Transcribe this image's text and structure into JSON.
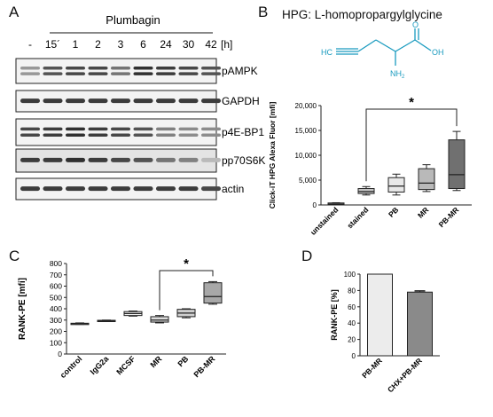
{
  "panels": {
    "a": {
      "letter": "A",
      "treatment": "Plumbagin",
      "time_unit": "[h]",
      "lanes": [
        "-",
        "15´",
        "1",
        "2",
        "3",
        "6",
        "24",
        "30",
        "42"
      ],
      "blots": [
        "pAMPK",
        "GAPDH",
        "p4E-BP1",
        "pp70S6K",
        "actin"
      ]
    },
    "b": {
      "letter": "B",
      "structure_title": "HPG: L-homopropargylglycine",
      "structure_atoms": {
        "alkyne": "HC",
        "oh": "OH",
        "o": "O",
        "nh2": "NH",
        "nh2_sub": "2"
      },
      "chart_data": {
        "type": "box",
        "ylabel": "Click-iT HPG Alexa Fluor [mfi]",
        "ylim": [
          0,
          20000
        ],
        "yticks": [
          "0",
          "5,000",
          "10,000",
          "15,000",
          "20,000"
        ],
        "categories": [
          "unstained",
          "stained",
          "PB",
          "MR",
          "PB-MR"
        ],
        "boxes": [
          {
            "min": 200,
            "q1": 250,
            "median": 320,
            "q3": 400,
            "max": 450,
            "fill": "#ffffff"
          },
          {
            "min": 2000,
            "q1": 2300,
            "median": 2700,
            "q3": 3300,
            "max": 3700,
            "fill": "#c8c8c8"
          },
          {
            "min": 2000,
            "q1": 2600,
            "median": 3800,
            "q3": 5500,
            "max": 6200,
            "fill": "#e8e8e8"
          },
          {
            "min": 2700,
            "q1": 3100,
            "median": 4400,
            "q3": 7300,
            "max": 8100,
            "fill": "#b9b9b9"
          },
          {
            "min": 2900,
            "q1": 3300,
            "median": 6100,
            "q3": 13100,
            "max": 14800,
            "fill": "#707070"
          }
        ],
        "significance": {
          "from": "stained",
          "to": "PB-MR",
          "label": "*"
        }
      }
    },
    "c": {
      "letter": "C",
      "chart_data": {
        "type": "box",
        "ylabel": "RANK-PE [mfi]",
        "ylim": [
          0,
          800
        ],
        "yticks": [
          "0",
          "100",
          "200",
          "300",
          "400",
          "500",
          "600",
          "700",
          "800"
        ],
        "categories": [
          "control",
          "IgG2a",
          "MCSF",
          "MR",
          "PB",
          "PB-MR"
        ],
        "boxes": [
          {
            "min": 262,
            "q1": 265,
            "median": 268,
            "q3": 272,
            "max": 275,
            "fill": "#ffffff"
          },
          {
            "min": 288,
            "q1": 290,
            "median": 294,
            "q3": 298,
            "max": 300,
            "fill": "#ffffff"
          },
          {
            "min": 335,
            "q1": 340,
            "median": 358,
            "q3": 375,
            "max": 380,
            "fill": "#f0f0f0"
          },
          {
            "min": 275,
            "q1": 282,
            "median": 300,
            "q3": 330,
            "max": 340,
            "fill": "#dcdcdc"
          },
          {
            "min": 320,
            "q1": 330,
            "median": 362,
            "q3": 395,
            "max": 400,
            "fill": "#d0d0d0"
          },
          {
            "min": 440,
            "q1": 450,
            "median": 508,
            "q3": 630,
            "max": 640,
            "fill": "#a8a8a8"
          }
        ],
        "significance": {
          "from": "MR",
          "to": "PB-MR",
          "label": "*"
        }
      }
    },
    "d": {
      "letter": "D",
      "chart_data": {
        "type": "bar",
        "ylabel": "RANK-PE [%]",
        "ylim": [
          0,
          100
        ],
        "yticks": [
          "0",
          "20",
          "40",
          "60",
          "80",
          "100"
        ],
        "categories": [
          "PB-MR",
          "CHX+PB-MR"
        ],
        "values": [
          100,
          78
        ],
        "errors": [
          0,
          1.5
        ],
        "fills": [
          "#ececec",
          "#8a8a8a"
        ]
      }
    }
  }
}
